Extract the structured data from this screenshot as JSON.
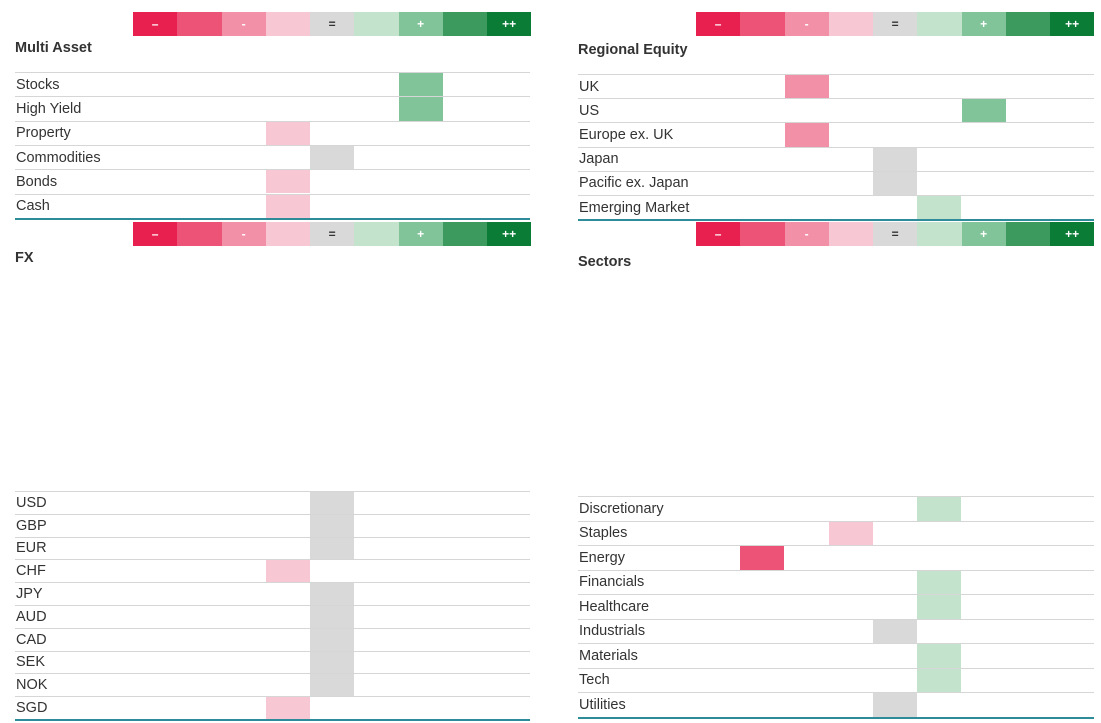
{
  "scale": [
    {
      "label": "–",
      "color": "#e8204f",
      "text_color": "#ffffff"
    },
    {
      "label": "",
      "color": "#ed5277",
      "text_color": "#ffffff"
    },
    {
      "label": "-",
      "color": "#f290a8",
      "text_color": "#ffffff"
    },
    {
      "label": "",
      "color": "#f7c7d3",
      "text_color": "#ffffff"
    },
    {
      "label": "=",
      "color": "#d9d9d9",
      "text_color": "#333333"
    },
    {
      "label": "",
      "color": "#c3e3cd",
      "text_color": "#ffffff"
    },
    {
      "label": "+",
      "color": "#82c499",
      "text_color": "#ffffff"
    },
    {
      "label": "",
      "color": "#3d9a5e",
      "text_color": "#ffffff"
    },
    {
      "label": "++",
      "color": "#0a7c36",
      "text_color": "#ffffff"
    }
  ],
  "panels": [
    {
      "title": "Multi Asset",
      "rows": [
        {
          "label": "Stocks",
          "level": 6
        },
        {
          "label": "High Yield",
          "level": 6
        },
        {
          "label": "Property",
          "level": 3
        },
        {
          "label": "Commodities",
          "level": 4
        },
        {
          "label": "Bonds",
          "level": 3
        },
        {
          "label": "Cash",
          "level": 3
        }
      ]
    },
    {
      "title": "Regional Equity",
      "rows": [
        {
          "label": "UK",
          "level": 2
        },
        {
          "label": "US",
          "level": 6
        },
        {
          "label": "Europe ex. UK",
          "level": 2
        },
        {
          "label": "Japan",
          "level": 4
        },
        {
          "label": "Pacific ex. Japan",
          "level": 4
        },
        {
          "label": "Emerging Market",
          "level": 5
        }
      ]
    },
    {
      "title": "FX",
      "rows": [
        {
          "label": "USD",
          "level": 4
        },
        {
          "label": "GBP",
          "level": 4
        },
        {
          "label": "EUR",
          "level": 4
        },
        {
          "label": "CHF",
          "level": 3
        },
        {
          "label": "JPY",
          "level": 4
        },
        {
          "label": "AUD",
          "level": 4
        },
        {
          "label": "CAD",
          "level": 4
        },
        {
          "label": "SEK",
          "level": 4
        },
        {
          "label": "NOK",
          "level": 4
        },
        {
          "label": "SGD",
          "level": 3
        }
      ]
    },
    {
      "title": "Sectors",
      "rows": [
        {
          "label": "Discretionary",
          "level": 5
        },
        {
          "label": "Staples",
          "level": 3
        },
        {
          "label": "Energy",
          "level": 1
        },
        {
          "label": "Financials",
          "level": 5
        },
        {
          "label": "Healthcare",
          "level": 5
        },
        {
          "label": "Industrials",
          "level": 4
        },
        {
          "label": "Materials",
          "level": 5
        },
        {
          "label": "Tech",
          "level": 5
        },
        {
          "label": "Utilities",
          "level": 4
        }
      ]
    }
  ]
}
